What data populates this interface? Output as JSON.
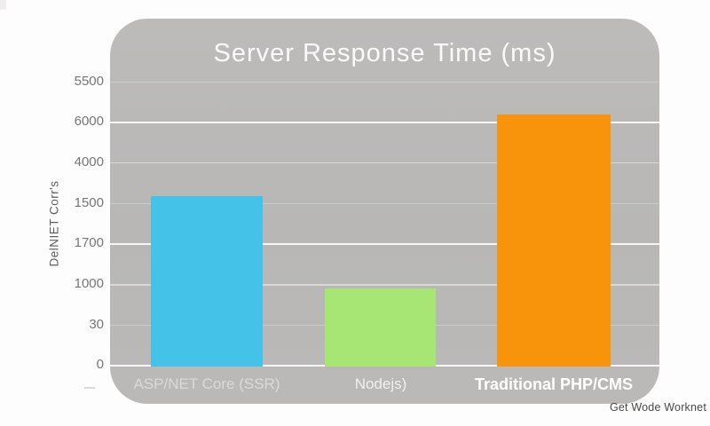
{
  "page": {
    "background": "#fdfdfd",
    "panel_color": "#b9b8b7",
    "footer": "Get Wode Worknet"
  },
  "chart_data": {
    "type": "bar",
    "title": "Server Response Time (ms)",
    "ylabel": "DelNIET Corr's",
    "xlabel": "",
    "categories": [
      "ASP/NET Core (SSR)",
      "Nodejs)",
      "Traditional PHP/CMS"
    ],
    "series": [
      {
        "name": "Server Response Time",
        "values": [
          1550,
          950,
          6100
        ]
      }
    ],
    "bar_height_pct": [
      59.7,
      27.4,
      88.3
    ],
    "colors": [
      "#45c2e8",
      "#a7e674",
      "#f8940b"
    ],
    "y_ticks_top_to_bottom": [
      "5500",
      "6000",
      "4000",
      "1500",
      "1700",
      "1000",
      "30",
      "0"
    ],
    "grid": true,
    "legend_position": "none",
    "title_color": "#fafafa",
    "gridline_color": "#ffffff"
  }
}
